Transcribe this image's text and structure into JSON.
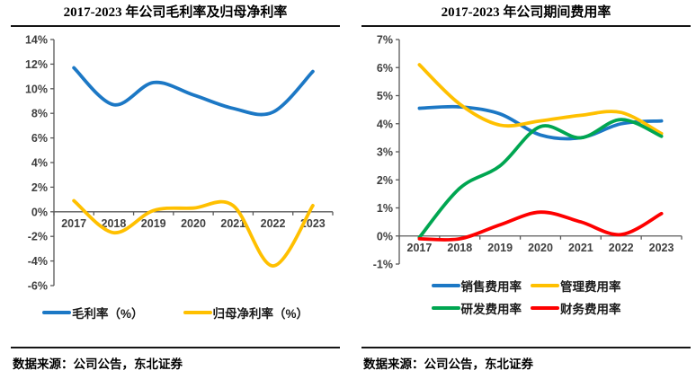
{
  "panels": [
    {
      "source": "数据来源：公司公告，东北证券"
    },
    {
      "source": "数据来源：公司公告，东北证券"
    }
  ],
  "colors": {
    "blue": "#1C78C5",
    "yellow": "#FFC000",
    "green": "#00A651",
    "red": "#FE0000",
    "axis": "#595959",
    "tick_text": "#3f3f3f",
    "rule": "#151515"
  },
  "chart_data": [
    {
      "type": "line",
      "title": "2017-2023 年公司毛利率及归母净利率",
      "categories": [
        "2017",
        "2018",
        "2019",
        "2020",
        "2021",
        "2022",
        "2023"
      ],
      "series": [
        {
          "id": "gross-margin",
          "name": "毛利率（%）",
          "color": "#1C78C5",
          "values": [
            11.7,
            8.7,
            10.5,
            9.5,
            8.4,
            8.1,
            11.4
          ]
        },
        {
          "id": "net-margin",
          "name": "归母净利率（%）",
          "color": "#FFC000",
          "values": [
            0.9,
            -1.7,
            0.1,
            0.3,
            0.5,
            -4.4,
            0.5
          ]
        }
      ],
      "ylim": [
        -6,
        14
      ],
      "ystep": 2,
      "y_tick_suffix": "%",
      "grid": false,
      "smooth": true,
      "legend_position": "bottom",
      "source": "数据来源：公司公告，东北证券"
    },
    {
      "type": "line",
      "title": "2017-2023 年公司期间费用率",
      "categories": [
        "2017",
        "2018",
        "2019",
        "2020",
        "2021",
        "2022",
        "2023"
      ],
      "series": [
        {
          "id": "sales-expense",
          "name": "销售费用率",
          "color": "#1C78C5",
          "values": [
            4.55,
            4.6,
            4.35,
            3.6,
            3.5,
            4.0,
            4.1
          ]
        },
        {
          "id": "admin-expense",
          "name": "管理费用率",
          "color": "#FFC000",
          "values": [
            6.1,
            4.7,
            3.95,
            4.1,
            4.3,
            4.4,
            3.65
          ]
        },
        {
          "id": "rd-expense",
          "name": "研发费用率",
          "color": "#00A651",
          "values": [
            -0.05,
            1.7,
            2.5,
            3.9,
            3.5,
            4.15,
            3.55
          ]
        },
        {
          "id": "finance-expense",
          "name": "财务费用率",
          "color": "#FE0000",
          "values": [
            -0.1,
            -0.1,
            0.4,
            0.85,
            0.5,
            0.05,
            0.8
          ]
        }
      ],
      "ylim": [
        -1,
        7
      ],
      "ystep": 1,
      "y_tick_suffix": "%",
      "grid": false,
      "smooth": true,
      "legend_position": "bottom",
      "source": "数据来源：公司公告，东北证券"
    }
  ]
}
